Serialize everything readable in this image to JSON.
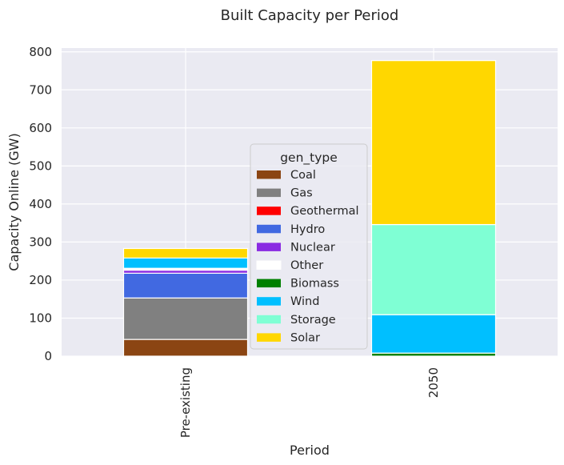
{
  "chart_data": {
    "type": "bar",
    "stacked": true,
    "title": "Built Capacity per Period",
    "xlabel": "Period",
    "ylabel": "Capacity Online (GW)",
    "ylim": [
      0,
      810
    ],
    "yticks": [
      0,
      100,
      200,
      300,
      400,
      500,
      600,
      700,
      800
    ],
    "categories": [
      "Pre-existing",
      "2050"
    ],
    "grid": true,
    "legend": {
      "title": "gen_type",
      "placement": "center"
    },
    "series": [
      {
        "name": "Coal",
        "color": "#8B4513",
        "values": [
          44,
          0
        ]
      },
      {
        "name": "Gas",
        "color": "#808080",
        "values": [
          109,
          0
        ]
      },
      {
        "name": "Geothermal",
        "color": "#FF0000",
        "values": [
          0,
          0
        ]
      },
      {
        "name": "Hydro",
        "color": "#4169E1",
        "values": [
          65,
          0
        ]
      },
      {
        "name": "Nuclear",
        "color": "#8A2BE2",
        "values": [
          8,
          0
        ]
      },
      {
        "name": "Other",
        "color": "#FFFFFF",
        "values": [
          5,
          0
        ]
      },
      {
        "name": "Biomass",
        "color": "#008000",
        "values": [
          0,
          8
        ]
      },
      {
        "name": "Wind",
        "color": "#00BFFF",
        "values": [
          27,
          101
        ]
      },
      {
        "name": "Storage",
        "color": "#7FFFD4",
        "values": [
          0,
          237
        ]
      },
      {
        "name": "Solar",
        "color": "#FFD700",
        "values": [
          25,
          431
        ]
      }
    ]
  }
}
